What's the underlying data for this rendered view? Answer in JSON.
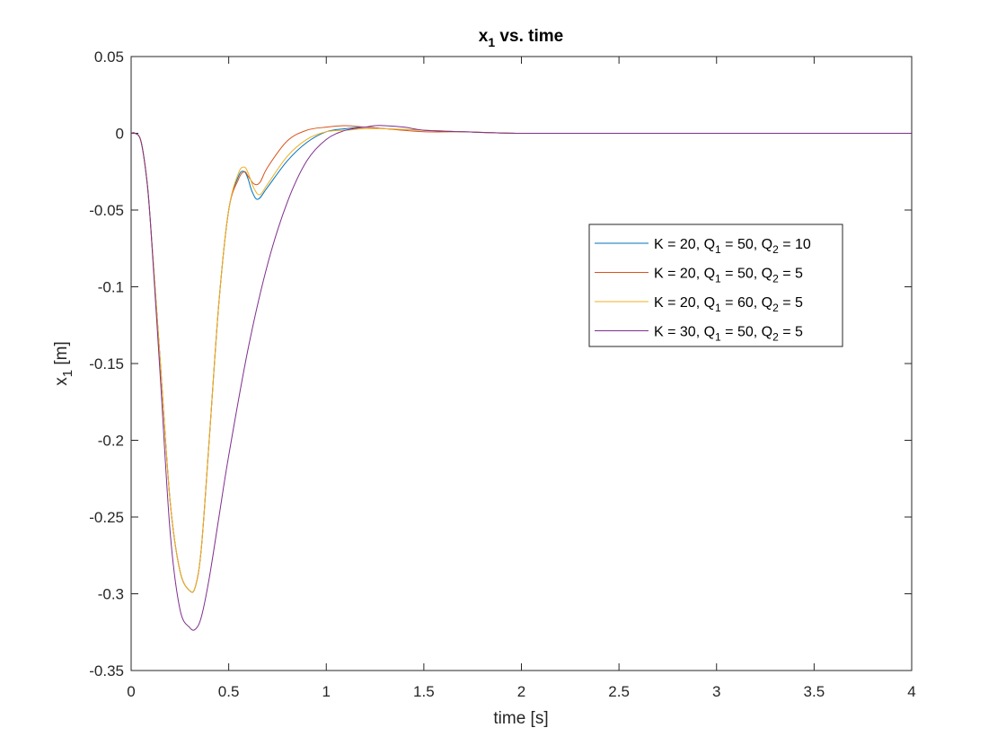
{
  "chart_data": {
    "type": "line",
    "title": {
      "main": "x",
      "sub": "1",
      "rest": " vs. time"
    },
    "xlabel": "time [s]",
    "ylabel": {
      "main": "x",
      "sub": "1",
      "rest": " [m]"
    },
    "xlim": [
      0,
      4
    ],
    "ylim": [
      -0.35,
      0.05
    ],
    "xticks": [
      0,
      0.5,
      1,
      1.5,
      2,
      2.5,
      3,
      3.5,
      4
    ],
    "xtick_labels": [
      "0",
      "0.5",
      "1",
      "1.5",
      "2",
      "2.5",
      "3",
      "3.5",
      "4"
    ],
    "yticks": [
      0.05,
      0,
      -0.05,
      -0.1,
      -0.15,
      -0.2,
      -0.25,
      -0.3,
      -0.35
    ],
    "ytick_labels": [
      "0.05",
      "0",
      "-0.05",
      "-0.1",
      "-0.15",
      "-0.2",
      "-0.25",
      "-0.3",
      "-0.35"
    ],
    "grid": false,
    "legend_position": "right-middle",
    "series": [
      {
        "label_parts": [
          "K = 20, Q",
          "1",
          " = 50, Q",
          "2",
          " = 10"
        ],
        "color": "#0072BD",
        "x": [
          0,
          0.02,
          0.05,
          0.08,
          0.1,
          0.15,
          0.2,
          0.25,
          0.3,
          0.33,
          0.36,
          0.4,
          0.45,
          0.5,
          0.55,
          0.58,
          0.6,
          0.62,
          0.65,
          0.7,
          0.8,
          0.9,
          1.0,
          1.1,
          1.2,
          1.3,
          1.5,
          1.7,
          2.0,
          2.5,
          3.0,
          3.5,
          4.0
        ],
        "y": [
          0,
          0,
          -0.005,
          -0.03,
          -0.06,
          -0.15,
          -0.24,
          -0.285,
          -0.298,
          -0.295,
          -0.27,
          -0.2,
          -0.11,
          -0.05,
          -0.028,
          -0.025,
          -0.03,
          -0.038,
          -0.043,
          -0.035,
          -0.018,
          -0.006,
          0.001,
          0.003,
          0.004,
          0.003,
          0.002,
          0.001,
          0,
          0,
          0,
          0,
          0
        ]
      },
      {
        "label_parts": [
          "K = 20, Q",
          "1",
          " = 50, Q",
          "2",
          " = 5"
        ],
        "color": "#D95319",
        "x": [
          0,
          0.02,
          0.05,
          0.08,
          0.1,
          0.15,
          0.2,
          0.25,
          0.3,
          0.33,
          0.36,
          0.4,
          0.45,
          0.5,
          0.55,
          0.58,
          0.6,
          0.63,
          0.66,
          0.7,
          0.8,
          0.9,
          1.0,
          1.1,
          1.2,
          1.3,
          1.5,
          1.7,
          2.0,
          2.5,
          3.0,
          3.5,
          4.0
        ],
        "y": [
          0,
          0,
          -0.005,
          -0.03,
          -0.06,
          -0.15,
          -0.24,
          -0.285,
          -0.298,
          -0.295,
          -0.27,
          -0.2,
          -0.11,
          -0.05,
          -0.03,
          -0.025,
          -0.028,
          -0.033,
          -0.032,
          -0.022,
          -0.005,
          0.002,
          0.004,
          0.005,
          0.004,
          0.003,
          0.001,
          0.001,
          0,
          0,
          0,
          0,
          0
        ]
      },
      {
        "label_parts": [
          "K = 20, Q",
          "1",
          " = 60, Q",
          "2",
          " = 5"
        ],
        "color": "#EDB120",
        "x": [
          0,
          0.02,
          0.05,
          0.08,
          0.1,
          0.15,
          0.2,
          0.25,
          0.3,
          0.33,
          0.36,
          0.4,
          0.45,
          0.5,
          0.55,
          0.58,
          0.6,
          0.63,
          0.66,
          0.7,
          0.8,
          0.9,
          1.0,
          1.1,
          1.2,
          1.3,
          1.5,
          1.7,
          2.0,
          2.5,
          3.0,
          3.5,
          4.0
        ],
        "y": [
          0,
          0,
          -0.005,
          -0.03,
          -0.06,
          -0.15,
          -0.24,
          -0.285,
          -0.298,
          -0.295,
          -0.27,
          -0.2,
          -0.11,
          -0.05,
          -0.026,
          -0.022,
          -0.026,
          -0.036,
          -0.04,
          -0.033,
          -0.015,
          -0.004,
          0.001,
          0.002,
          0.003,
          0.003,
          0.002,
          0.001,
          0,
          0,
          0,
          0,
          0
        ]
      },
      {
        "label_parts": [
          "K = 30, Q",
          "1",
          " = 50, Q",
          "2",
          " = 5"
        ],
        "color": "#7E2F8E",
        "x": [
          0,
          0.02,
          0.05,
          0.08,
          0.1,
          0.15,
          0.2,
          0.25,
          0.3,
          0.33,
          0.36,
          0.4,
          0.45,
          0.5,
          0.6,
          0.7,
          0.8,
          0.9,
          1.0,
          1.1,
          1.2,
          1.25,
          1.3,
          1.4,
          1.5,
          1.7,
          2.0,
          2.5,
          3.0,
          3.5,
          4.0
        ],
        "y": [
          0,
          0,
          -0.005,
          -0.03,
          -0.06,
          -0.16,
          -0.26,
          -0.31,
          -0.322,
          -0.323,
          -0.315,
          -0.29,
          -0.25,
          -0.21,
          -0.14,
          -0.085,
          -0.045,
          -0.018,
          -0.004,
          0.002,
          0.004,
          0.005,
          0.005,
          0.004,
          0.002,
          0.001,
          0,
          0,
          0,
          0,
          0
        ]
      }
    ]
  }
}
